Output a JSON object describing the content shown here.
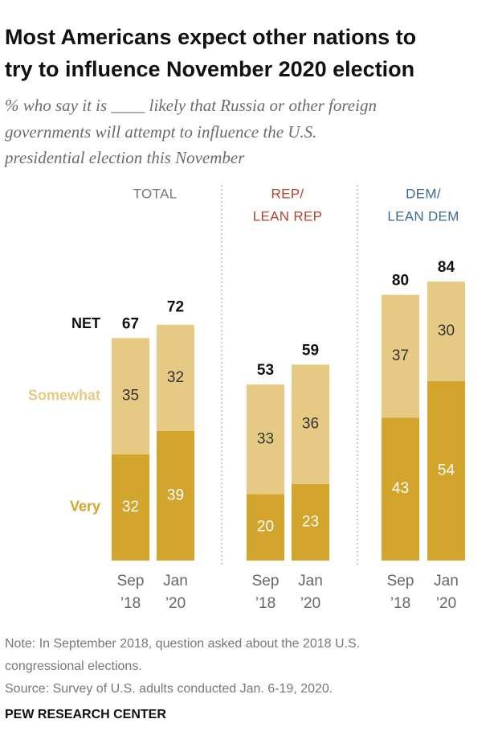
{
  "title": [
    "Most Americans expect other nations to",
    "try to influence November 2020 election"
  ],
  "subtitle": [
    "% who say it is ____ likely that Russia or other foreign",
    "governments will attempt to influence the U.S.",
    "presidential election this November"
  ],
  "note": [
    "Note: In September 2018, question asked about the 2018 U.S.",
    "congressional elections."
  ],
  "source": "Source: Survey of U.S. adults conducted Jan. 6-19, 2020.",
  "credit": "PEW RESEARCH CENTER",
  "chart_data": {
    "type": "stacked_bar",
    "groups": [
      {
        "label": [
          "TOTAL"
        ],
        "color": "#777777"
      },
      {
        "label": [
          "REP/",
          "LEAN REP"
        ],
        "color": "#b8402f"
      },
      {
        "label": [
          "DEM/",
          "LEAN DEM"
        ],
        "color": "#3d6a8a"
      }
    ],
    "categories": [
      [
        "Sep",
        "’18"
      ],
      [
        "Jan",
        "’20"
      ],
      [
        "Sep",
        "’18"
      ],
      [
        "Jan",
        "’20"
      ],
      [
        "Sep",
        "’18"
      ],
      [
        "Jan",
        "’20"
      ]
    ],
    "series": [
      {
        "name": "Very",
        "color": "#d4a52c",
        "label_color": "#ffffff",
        "values": [
          32,
          39,
          20,
          23,
          43,
          54
        ]
      },
      {
        "name": "Somewhat",
        "color": "#e6c982",
        "label_color": "#333333",
        "values": [
          35,
          32,
          33,
          36,
          37,
          30
        ]
      }
    ],
    "total_label": "NET",
    "totals": [
      67,
      72,
      53,
      59,
      80,
      84
    ]
  }
}
